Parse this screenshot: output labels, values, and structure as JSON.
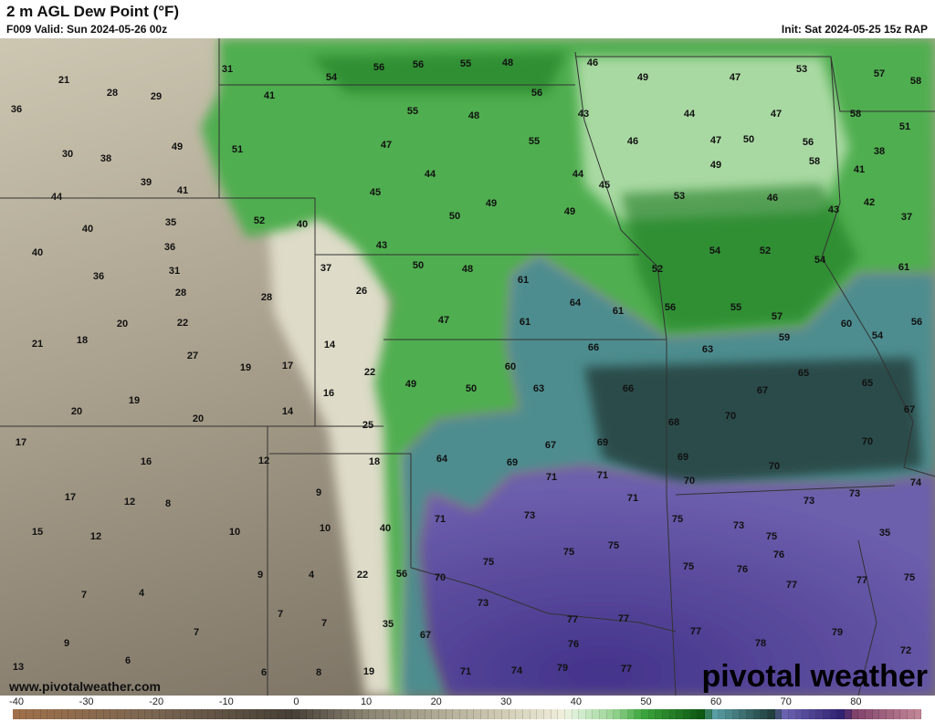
{
  "header": {
    "title": "2 m AGL Dew Point (°F)",
    "valid": "F009 Valid: Sun 2024-05-26 00z",
    "init": "Init: Sat 2024-05-25 15z RAP"
  },
  "footer": {
    "website": "www.pivotalweather.com",
    "logo": "pivotal weather"
  },
  "colorbar": {
    "ticks": [
      "-40",
      "-30",
      "-20",
      "-10",
      "0",
      "10",
      "20",
      "30",
      "40",
      "50",
      "60",
      "70",
      "80"
    ],
    "range": [
      -40,
      90
    ],
    "stops": [
      [
        -40,
        "#a0704a"
      ],
      [
        -20,
        "#7a6652"
      ],
      [
        0,
        "#463f36"
      ],
      [
        10,
        "#878170"
      ],
      [
        20,
        "#aca792"
      ],
      [
        30,
        "#cfcbb4"
      ],
      [
        39,
        "#f0efdc"
      ],
      [
        40,
        "#e2f2de"
      ],
      [
        46,
        "#98d492"
      ],
      [
        50,
        "#3ea83e"
      ],
      [
        59,
        "#0b5410"
      ],
      [
        60,
        "#5ea4aa"
      ],
      [
        69,
        "#1d3a38"
      ],
      [
        70,
        "#6c66b4"
      ],
      [
        79,
        "#2e1e6e"
      ],
      [
        80,
        "#7c3e68"
      ],
      [
        90,
        "#c48a98"
      ]
    ]
  },
  "map": {
    "colors": {
      "tan": "#c9c3ad",
      "grey_brown": "#8e8576",
      "light": "#dedbc8",
      "green": "#4fae4f",
      "light_green": "#a9d9a2",
      "dark_green": "#1c7a24",
      "teal": "#4d8d8f",
      "dark_teal": "#2a4c48",
      "purple": "#6c5eac",
      "dark_purple": "#43338a",
      "border": "#333333"
    },
    "values": [
      31,
      54,
      56,
      56,
      55,
      48,
      46,
      49,
      47,
      53,
      57,
      58,
      21,
      28,
      29,
      36,
      41,
      55,
      48,
      56,
      43,
      44,
      47,
      58,
      51,
      30,
      38,
      49,
      51,
      47,
      55,
      46,
      47,
      50,
      56,
      38,
      39,
      41,
      44,
      44,
      44,
      49,
      58,
      41,
      45,
      45,
      49,
      49,
      53,
      46,
      43,
      42,
      37,
      35,
      52,
      40,
      50,
      40,
      36,
      40,
      43,
      54,
      52,
      54,
      61,
      31,
      36,
      37,
      50,
      48,
      61,
      52,
      28,
      28,
      26,
      64,
      61,
      56,
      55,
      57,
      56,
      60,
      20,
      22,
      47,
      61,
      21,
      18,
      14,
      66,
      63,
      59,
      54,
      27,
      19,
      17,
      22,
      60,
      65,
      65,
      16,
      49,
      50,
      63,
      66,
      67,
      19,
      14,
      20,
      20,
      67,
      70,
      68,
      25,
      17,
      67,
      69,
      70,
      16,
      12,
      18,
      64,
      69,
      69,
      70,
      74,
      71,
      71,
      70,
      9,
      17,
      12,
      8,
      71,
      73,
      73,
      10,
      15,
      12,
      10,
      40,
      71,
      73,
      75,
      73,
      75,
      35,
      75,
      75,
      76,
      9,
      4,
      22,
      56,
      70,
      75,
      75,
      76,
      77,
      77,
      75,
      7,
      4,
      73,
      7,
      7,
      35,
      77,
      77,
      77,
      79,
      7,
      67,
      9,
      76,
      78,
      72,
      6,
      13,
      6,
      8,
      19,
      71,
      74,
      79,
      77
    ]
  }
}
